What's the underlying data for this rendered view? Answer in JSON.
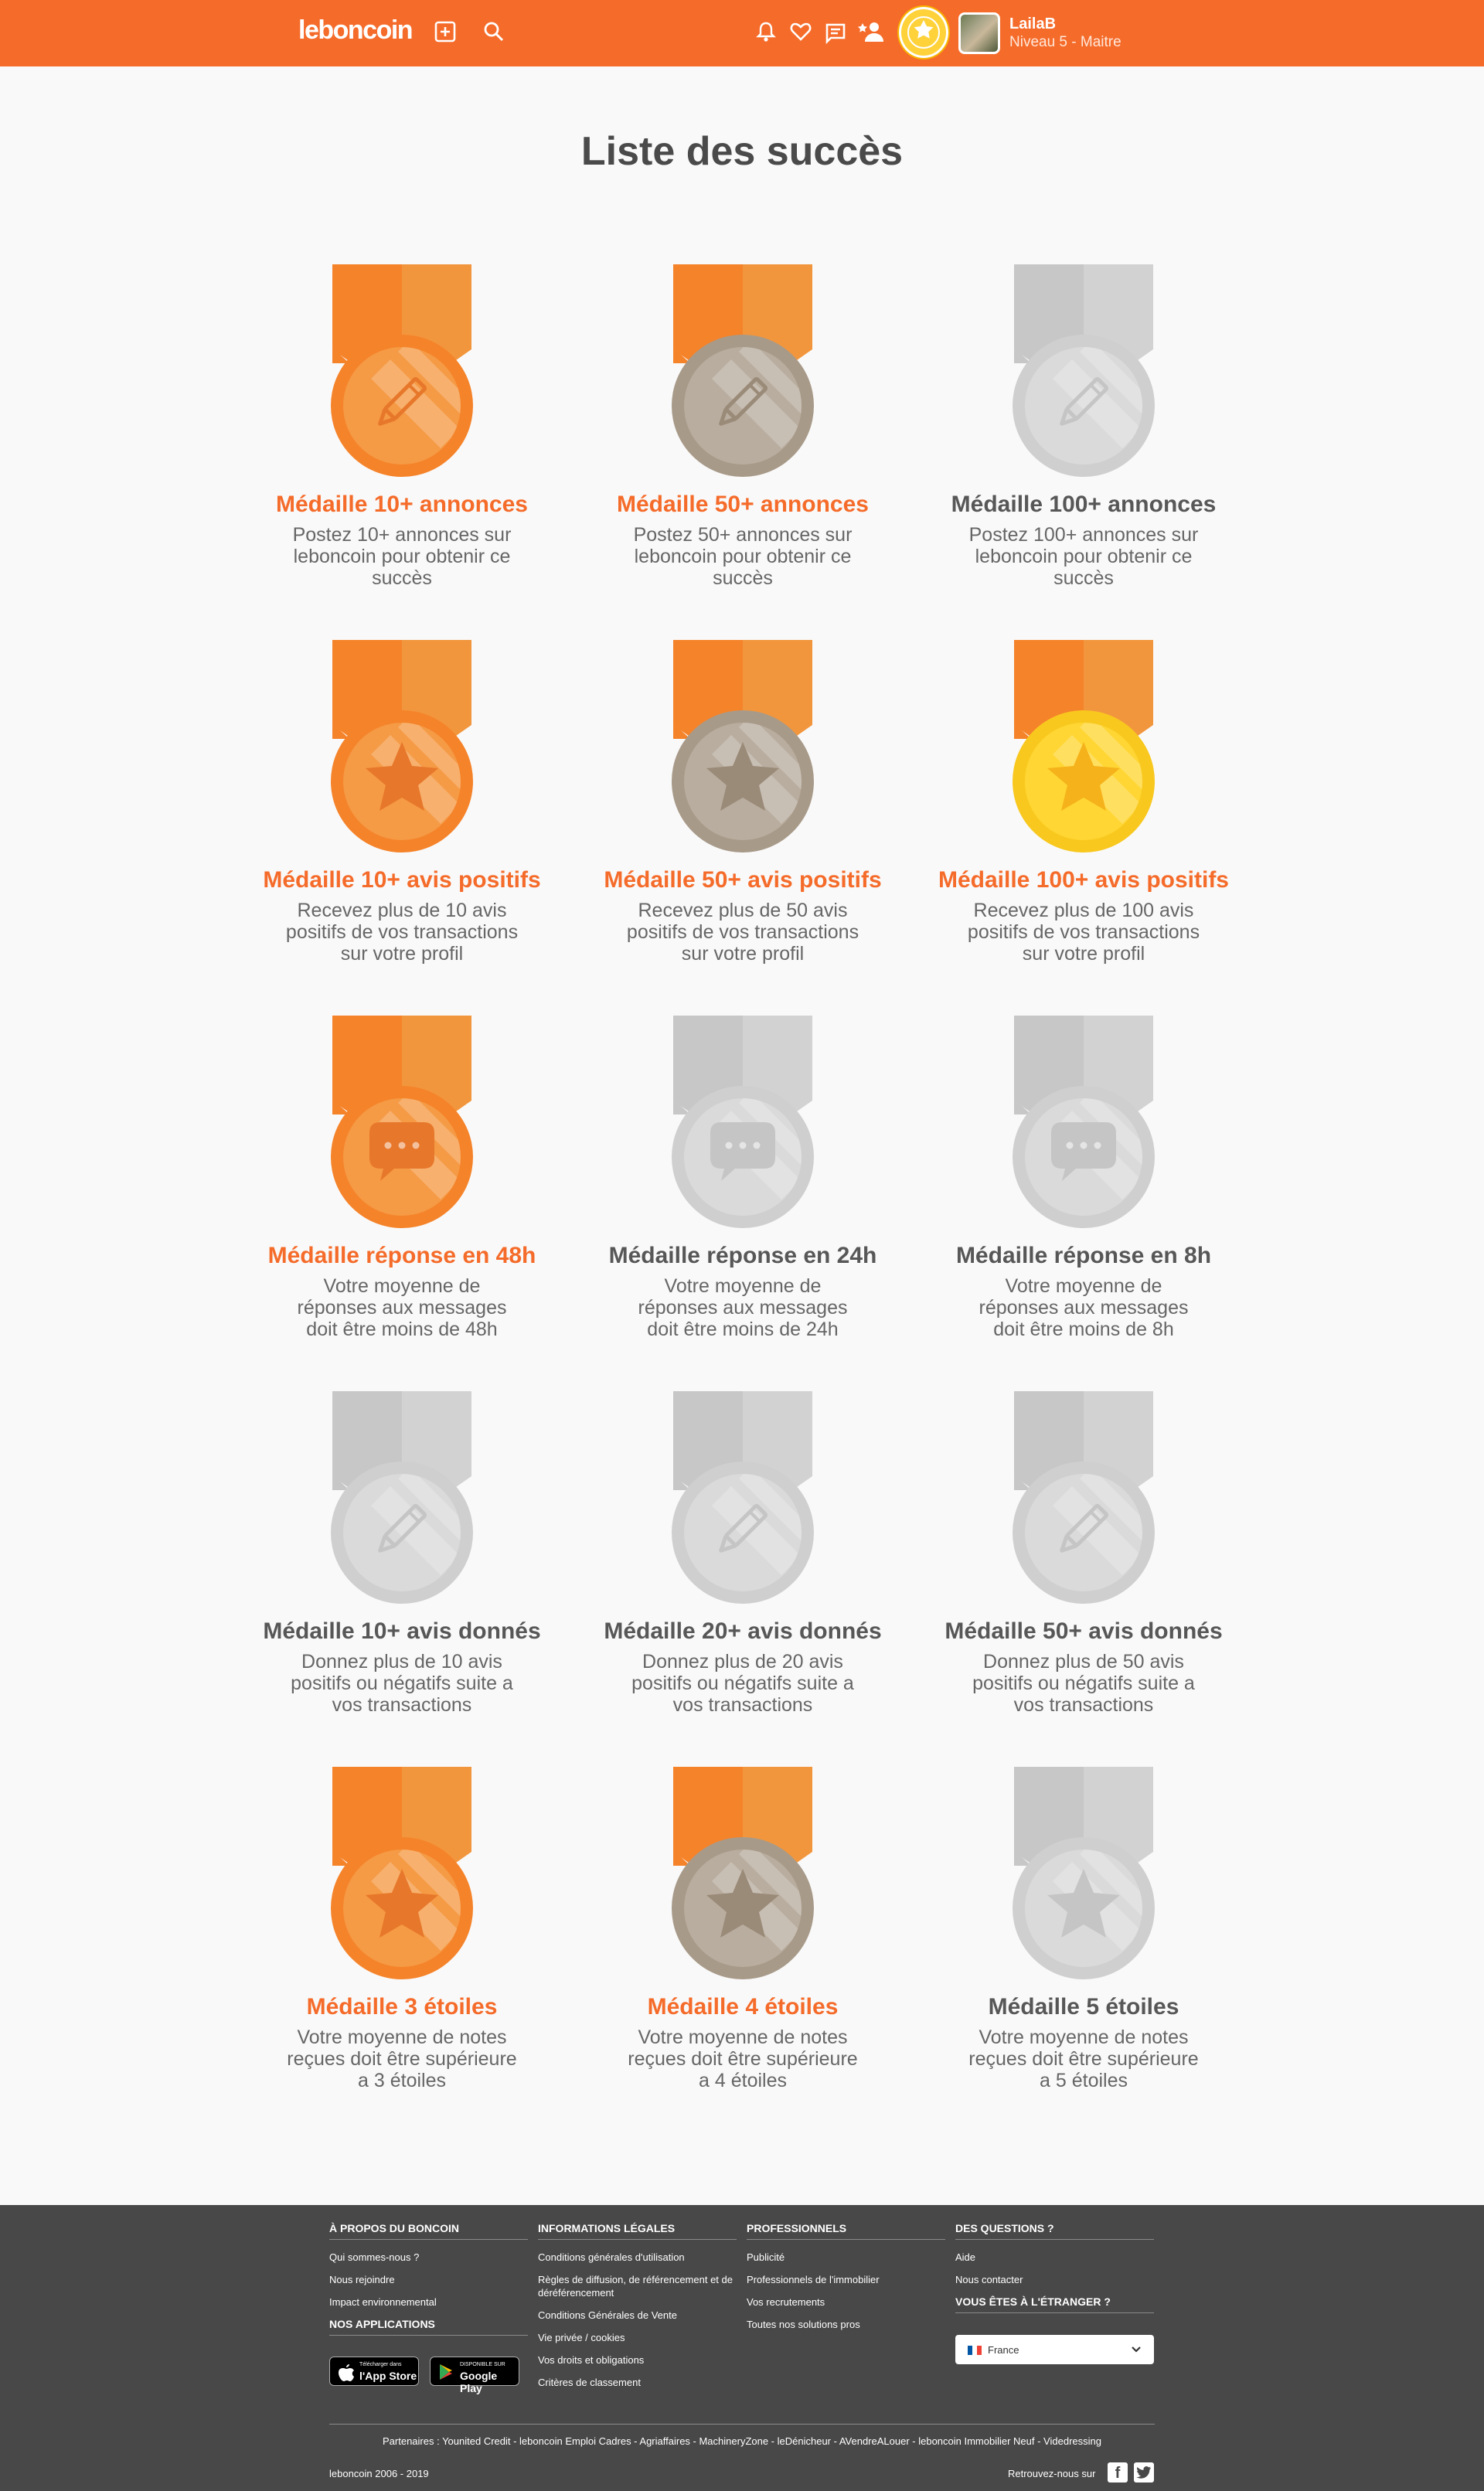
{
  "header": {
    "logo": "leboncoin",
    "icons": [
      "add-listing-icon",
      "search-icon",
      "bell-icon",
      "heart-icon",
      "messages-icon",
      "follow-user-icon"
    ],
    "user": {
      "name": "LailaB",
      "level": "Niveau 5 - Maitre"
    },
    "colors": {
      "brand": "#f56b2a"
    }
  },
  "page": {
    "title": "Liste des succès"
  },
  "medals": [
    {
      "title": "Médaille 10+ annonces",
      "desc": "Postez 10+ annonces sur leboncoin pour obtenir ce succès",
      "icon": "pencil-icon",
      "tier": "bronze",
      "unlocked": true
    },
    {
      "title": "Médaille 50+ annonces",
      "desc": "Postez 50+ annonces sur leboncoin pour obtenir ce succès",
      "icon": "pencil-icon",
      "tier": "silver",
      "unlocked": true
    },
    {
      "title": "Médaille 100+ annonces",
      "desc": "Postez 100+ annonces sur leboncoin pour obtenir ce succès",
      "icon": "pencil-icon",
      "tier": "locked",
      "unlocked": false
    },
    {
      "title": "Médaille 10+ avis positifs",
      "desc": "Recevez plus de 10 avis positifs de vos transactions sur votre profil",
      "icon": "star-icon",
      "tier": "bronze",
      "unlocked": true
    },
    {
      "title": "Médaille 50+ avis positifs",
      "desc": "Recevez plus de 50 avis positifs de vos transactions sur votre profil",
      "icon": "star-icon",
      "tier": "silver",
      "unlocked": true
    },
    {
      "title": "Médaille 100+ avis positifs",
      "desc": "Recevez plus de 100 avis positifs de vos transactions sur votre profil",
      "icon": "star-icon",
      "tier": "gold",
      "unlocked": true
    },
    {
      "title": "Médaille réponse en 48h",
      "desc": "Votre moyenne de réponses aux messages doit être moins de 48h",
      "icon": "chat-bubble-icon",
      "tier": "bronze",
      "unlocked": true
    },
    {
      "title": "Médaille réponse en 24h",
      "desc": "Votre moyenne de réponses aux messages doit être moins de 24h",
      "icon": "chat-bubble-icon",
      "tier": "locked",
      "unlocked": false
    },
    {
      "title": "Médaille réponse en 8h",
      "desc": "Votre moyenne de réponses aux messages doit être moins de 8h",
      "icon": "chat-bubble-icon",
      "tier": "locked",
      "unlocked": false
    },
    {
      "title": "Médaille 10+ avis donnés",
      "desc": "Donnez plus de 10 avis positifs ou négatifs suite a vos transactions",
      "icon": "pencil-icon",
      "tier": "locked",
      "unlocked": false
    },
    {
      "title": "Médaille 20+ avis donnés",
      "desc": "Donnez plus de 20 avis positifs ou négatifs suite a vos transactions",
      "icon": "pencil-icon",
      "tier": "locked",
      "unlocked": false
    },
    {
      "title": "Médaille 50+ avis donnés",
      "desc": "Donnez plus de 50 avis positifs ou négatifs suite a vos transactions",
      "icon": "pencil-icon",
      "tier": "locked",
      "unlocked": false
    },
    {
      "title": "Médaille 3 étoiles",
      "desc": "Votre moyenne de notes reçues doit être supérieure a 3 étoiles",
      "icon": "star-icon",
      "tier": "bronze",
      "unlocked": true
    },
    {
      "title": "Médaille 4 étoiles",
      "desc": "Votre moyenne de notes reçues doit être supérieure a 4 étoiles",
      "icon": "star-icon",
      "tier": "silver",
      "unlocked": true
    },
    {
      "title": "Médaille 5 étoiles",
      "desc": "Votre moyenne de notes reçues doit être supérieure a 5 étoiles",
      "icon": "star-icon",
      "tier": "locked",
      "unlocked": false
    }
  ],
  "tier_colors": {
    "bronze": {
      "ribbon_a": "#f5832a",
      "ribbon_b": "#f2963d",
      "ring": "#f5832a",
      "face": "#f59a45",
      "glyph": "#e7772a"
    },
    "silver": {
      "ribbon_a": "#f5832a",
      "ribbon_b": "#f2963d",
      "ring": "#a89a89",
      "face": "#b9ad9f",
      "glyph": "#9a8a78"
    },
    "gold": {
      "ribbon_a": "#f5832a",
      "ribbon_b": "#f2963d",
      "ring": "#f8c81e",
      "face": "#ffd633",
      "glyph": "#f5b21a"
    },
    "locked": {
      "ribbon_a": "#c7c7c7",
      "ribbon_b": "#d2d2d2",
      "ring": "#cfcfcf",
      "face": "#dadada",
      "glyph": "#c5c5c5"
    }
  },
  "footer": {
    "about": {
      "title": "À PROPOS DU BONCOIN",
      "links": [
        "Qui sommes-nous ?",
        "Nous rejoindre",
        "Impact environnemental"
      ]
    },
    "apps": {
      "title": "NOS APPLICATIONS",
      "appstore_small": "Télécharger dans",
      "appstore": "l'App Store",
      "googleplay_small": "DISPONIBLE SUR",
      "googleplay": "Google Play"
    },
    "legal": {
      "title": "INFORMATIONS LÉGALES",
      "links": [
        "Conditions générales d'utilisation",
        "Règles de diffusion, de référencement et de déréférencement",
        "Conditions Générales de Vente",
        "Vie privée / cookies",
        "Vos droits et obligations",
        "Critères de classement"
      ]
    },
    "pro": {
      "title": "PROFESSIONNELS",
      "links": [
        "Publicité",
        "Professionnels de l'immobilier",
        "Vos recrutements",
        "Toutes nos solutions pros"
      ]
    },
    "questions": {
      "title": "DES QUESTIONS ?",
      "links": [
        "Aide",
        "Nous contacter"
      ]
    },
    "abroad": {
      "title": "VOUS ÊTES À L'ÉTRANGER ?",
      "country": "France"
    },
    "partners": "Partenaires : Younited Credit - leboncoin Emploi Cadres - Agriaffaires - MachineryZone - leDénicheur - AVendreALouer - leboncoin Immobilier Neuf - Videdressing",
    "copyright": "leboncoin 2006 - 2019",
    "social_label": "Retrouvez-nous sur",
    "social": [
      "facebook-icon",
      "twitter-icon"
    ]
  }
}
